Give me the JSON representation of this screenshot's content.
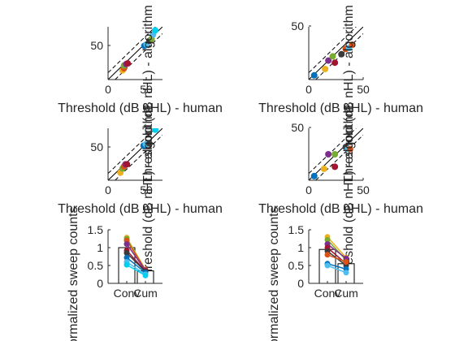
{
  "chart_data": [
    {
      "id": "scatter-a",
      "type": "scatter",
      "xlabel": "Threshold (dB nHL) - human",
      "ylabel": "Threshold (dB nHL) - algorithm",
      "xlim": [
        0,
        75
      ],
      "ylim": [
        0,
        75
      ],
      "xticks": [
        "0",
        "50"
      ],
      "yticks": [
        "50"
      ],
      "points": [
        {
          "x": 20,
          "y": 13,
          "color": "#edb120"
        },
        {
          "x": 22,
          "y": 16,
          "color": "#d95319"
        },
        {
          "x": 22,
          "y": 20,
          "color": "#77ac30"
        },
        {
          "x": 25,
          "y": 22,
          "color": "#7e2f8e"
        },
        {
          "x": 27,
          "y": 23,
          "color": "#a2142f"
        },
        {
          "x": 50,
          "y": 48,
          "color": "#0072bd"
        },
        {
          "x": 53,
          "y": 50,
          "color": "#4dbeee"
        },
        {
          "x": 57,
          "y": 55,
          "color": "#3b3b3b"
        },
        {
          "x": 60,
          "y": 58,
          "color": "#77ac30"
        },
        {
          "x": 62,
          "y": 64,
          "color": "#4dbeee"
        },
        {
          "x": 65,
          "y": 70,
          "color": "#00d0f0"
        }
      ]
    },
    {
      "id": "scatter-b",
      "type": "scatter",
      "xlabel": "Threshold (dB nHL) - human",
      "ylabel": "Threshold (dB nHL) - algorithm",
      "xlim": [
        0,
        50
      ],
      "ylim": [
        0,
        50
      ],
      "xticks": [
        "0",
        "50"
      ],
      "yticks": [
        "50"
      ],
      "points": [
        {
          "x": 5,
          "y": 4,
          "color": "#0072bd"
        },
        {
          "x": 15,
          "y": 10,
          "color": "#edb120"
        },
        {
          "x": 18,
          "y": 18,
          "color": "#7e2f8e"
        },
        {
          "x": 22,
          "y": 22,
          "color": "#77ac30"
        },
        {
          "x": 24,
          "y": 16,
          "color": "#a2142f"
        },
        {
          "x": 30,
          "y": 24,
          "color": "#3b3b3b"
        },
        {
          "x": 34,
          "y": 29,
          "color": "#d95319"
        },
        {
          "x": 37,
          "y": 30,
          "color": "#4dbeee"
        },
        {
          "x": 40,
          "y": 33,
          "color": "#d95319"
        }
      ]
    },
    {
      "id": "scatter-c",
      "type": "scatter",
      "xlabel": "Threshold (dB nHL) - human",
      "ylabel": "Threshold (dB nHL) - algorithm",
      "xlim": [
        0,
        75
      ],
      "ylim": [
        0,
        75
      ],
      "xticks": [
        "0",
        "50"
      ],
      "yticks": [
        "50"
      ],
      "points": [
        {
          "x": 17,
          "y": 11,
          "color": "#edb120"
        },
        {
          "x": 20,
          "y": 17,
          "color": "#77ac30"
        },
        {
          "x": 22,
          "y": 20,
          "color": "#d95319"
        },
        {
          "x": 24,
          "y": 23,
          "color": "#7e2f8e"
        },
        {
          "x": 26,
          "y": 23,
          "color": "#a2142f"
        },
        {
          "x": 49,
          "y": 50,
          "color": "#0072bd"
        },
        {
          "x": 52,
          "y": 52,
          "color": "#4dbeee"
        },
        {
          "x": 57,
          "y": 53,
          "color": "#3b3b3b"
        },
        {
          "x": 65,
          "y": 73,
          "color": "#00d0f0"
        }
      ]
    },
    {
      "id": "scatter-d",
      "type": "scatter",
      "xlabel": "Threshold (dB nHL) - human",
      "ylabel": "Threshold (dB nHL) - algorithm",
      "xlim": [
        0,
        50
      ],
      "ylim": [
        0,
        50
      ],
      "xticks": [
        "0",
        "50"
      ],
      "yticks": [
        "50"
      ],
      "points": [
        {
          "x": 5,
          "y": 4,
          "color": "#0072bd"
        },
        {
          "x": 14,
          "y": 11,
          "color": "#edb120"
        },
        {
          "x": 18,
          "y": 25,
          "color": "#7e2f8e"
        },
        {
          "x": 24,
          "y": 25,
          "color": "#77ac30"
        },
        {
          "x": 24,
          "y": 13,
          "color": "#a2142f"
        },
        {
          "x": 34,
          "y": 32,
          "color": "#3b3b3b"
        },
        {
          "x": 36,
          "y": 30,
          "color": "#4dbeee"
        },
        {
          "x": 38,
          "y": 30,
          "color": "#d95319"
        }
      ]
    },
    {
      "id": "bars-e",
      "type": "bar",
      "ylabel": "Normalized sweep counts",
      "categories": [
        "Conv",
        "Cum"
      ],
      "values": [
        1.0,
        0.35
      ],
      "ylim": [
        0,
        1.5
      ],
      "yticks": [
        "0",
        "0.5",
        "1",
        "1.5"
      ],
      "pairs": [
        {
          "a": 1.28,
          "b": 0.38,
          "color": "#edb120"
        },
        {
          "a": 1.25,
          "b": 0.37,
          "color": "#77ac30"
        },
        {
          "a": 1.2,
          "b": 0.38,
          "color": "#d95319"
        },
        {
          "a": 1.1,
          "b": 0.36,
          "color": "#7e2f8e"
        },
        {
          "a": 0.92,
          "b": 0.34,
          "color": "#a2142f"
        },
        {
          "a": 0.85,
          "b": 0.33,
          "color": "#3b3b3b"
        },
        {
          "a": 0.72,
          "b": 0.3,
          "color": "#0072bd"
        },
        {
          "a": 0.6,
          "b": 0.25,
          "color": "#4dbeee"
        },
        {
          "a": 0.52,
          "b": 0.22,
          "color": "#00d0f0"
        }
      ]
    },
    {
      "id": "bars-f",
      "type": "bar",
      "ylabel": "Normalized sweep counts",
      "categories": [
        "Conv",
        "Cum"
      ],
      "values": [
        0.95,
        0.55
      ],
      "ylim": [
        0,
        1.5
      ],
      "yticks": [
        "0",
        "0.5",
        "1",
        "1.5"
      ],
      "pairs": [
        {
          "a": 1.3,
          "b": 0.72,
          "color": "#edb120"
        },
        {
          "a": 1.22,
          "b": 0.65,
          "color": "#77ac30"
        },
        {
          "a": 1.1,
          "b": 0.7,
          "color": "#7e2f8e"
        },
        {
          "a": 1.0,
          "b": 0.55,
          "color": "#a2142f"
        },
        {
          "a": 0.9,
          "b": 0.5,
          "color": "#3b3b3b"
        },
        {
          "a": 0.8,
          "b": 0.6,
          "color": "#d95319"
        },
        {
          "a": 0.55,
          "b": 0.4,
          "color": "#0072bd"
        },
        {
          "a": 0.5,
          "b": 0.3,
          "color": "#4dbeee"
        }
      ]
    }
  ]
}
